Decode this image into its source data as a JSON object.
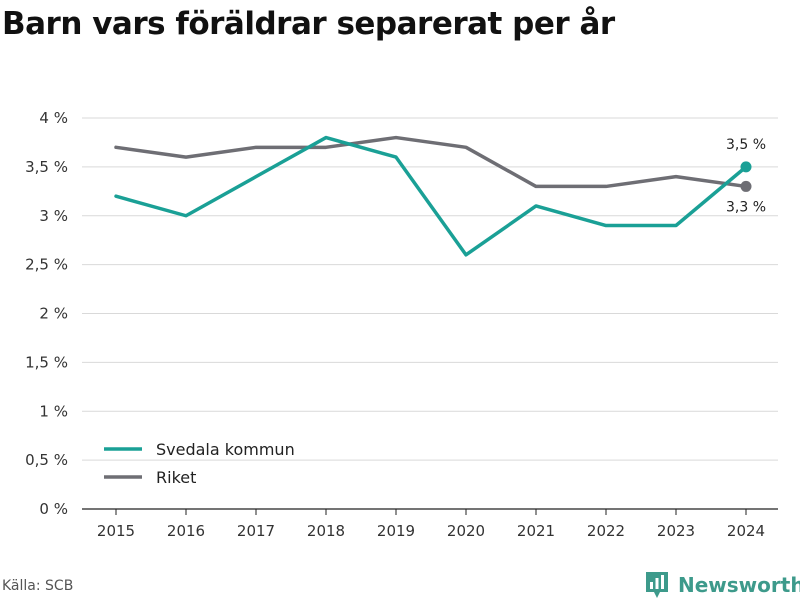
{
  "title": "Barn vars föräldrar separerat per år",
  "source": "Källa: SCB",
  "brand": "Newsworthy",
  "colors": {
    "svedala": "#1aa096",
    "riket": "#6e6e74",
    "grid": "#d9d9d9",
    "brand": "#3d9a8b"
  },
  "chart_data": {
    "type": "line",
    "x": [
      2015,
      2016,
      2017,
      2018,
      2019,
      2020,
      2021,
      2022,
      2023,
      2024
    ],
    "ylim": [
      0,
      4
    ],
    "yticks": [
      0,
      0.5,
      1,
      1.5,
      2,
      2.5,
      3,
      3.5,
      4
    ],
    "ytick_labels": [
      "0 %",
      "0,5 %",
      "1 %",
      "1,5 %",
      "2 %",
      "2,5 %",
      "3 %",
      "3,5 %",
      "4 %"
    ],
    "grid": true,
    "legend_position": "bottom-left",
    "series": [
      {
        "name": "Svedala kommun",
        "color": "#1aa096",
        "values": [
          3.2,
          3.0,
          3.4,
          3.8,
          3.6,
          2.6,
          3.1,
          2.9,
          2.9,
          3.5
        ],
        "end_label": "3,5 %"
      },
      {
        "name": "Riket",
        "color": "#6e6e74",
        "values": [
          3.7,
          3.6,
          3.7,
          3.7,
          3.8,
          3.7,
          3.3,
          3.3,
          3.4,
          3.3
        ],
        "end_label": "3,3 %"
      }
    ]
  }
}
